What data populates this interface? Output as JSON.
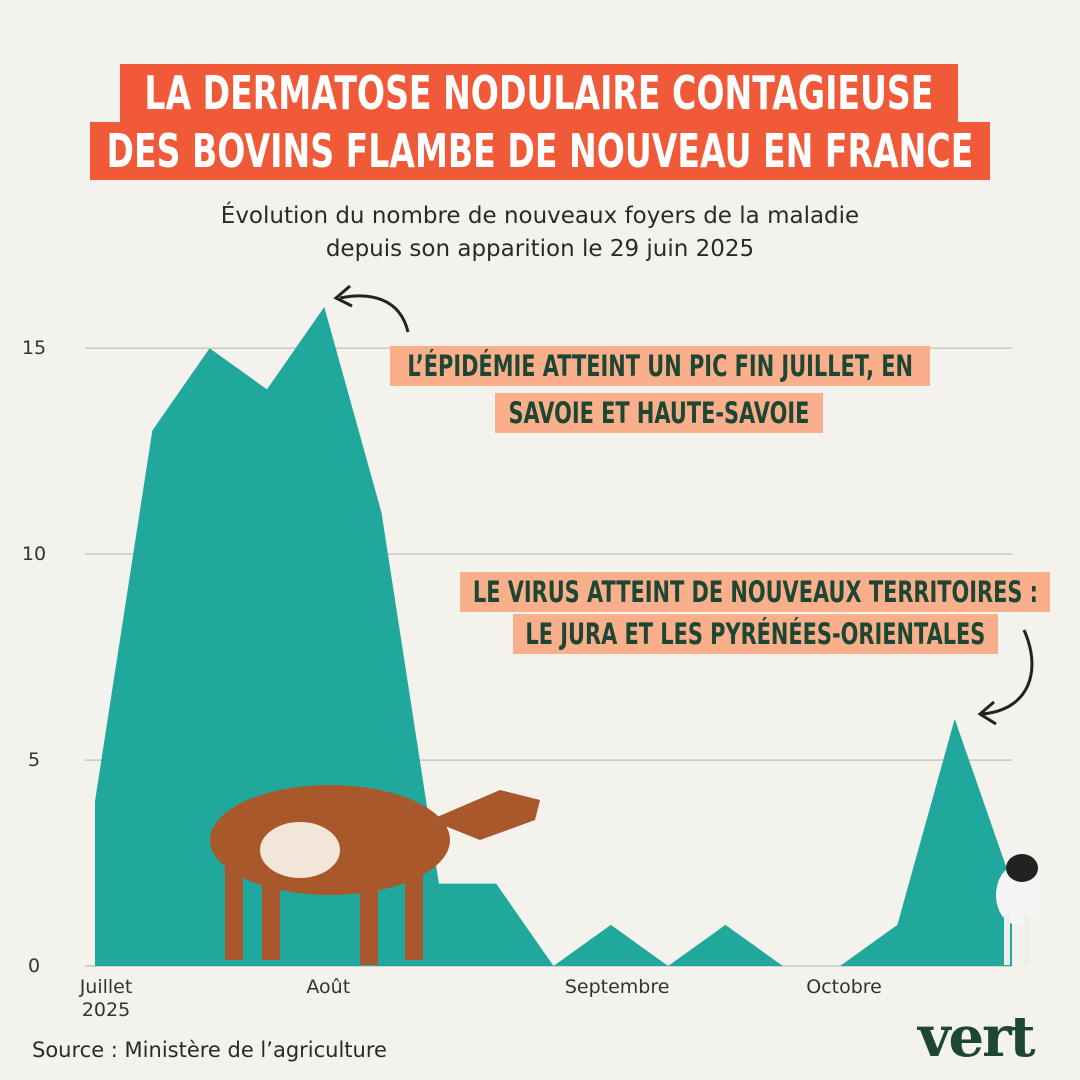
{
  "chart_data": {
    "type": "area",
    "title_lines": [
      "LA DERMATOSE NODULAIRE CONTAGIEUSE",
      "DES BOVINS FLAMBE DE NOUVEAU EN FRANCE"
    ],
    "subtitle_lines": [
      "Évolution du nombre de nouveaux foyers de la maladie",
      "depuis son apparition le 29 juin 2025"
    ],
    "categories": [
      "Juillet 2025",
      null,
      null,
      null,
      "Août",
      null,
      null,
      null,
      null,
      "Septembre",
      null,
      null,
      null,
      "Octobre",
      null,
      null,
      null
    ],
    "values": [
      4,
      13,
      15,
      14,
      16,
      11,
      2,
      2,
      0,
      1,
      0,
      1,
      0,
      0,
      1,
      6,
      2
    ],
    "color": "#20a89c",
    "ylim": [
      0,
      16
    ],
    "yticks": [
      0,
      5,
      10,
      15
    ],
    "grid": true,
    "annotations": [
      {
        "lines": [
          "L’ÉPIDÉMIE ATTEINT UN PIC FIN JUILLET, EN",
          "SAVOIE ET HAUTE-SAVOIE"
        ]
      },
      {
        "lines": [
          "LE VIRUS ATTEINT DE NOUVEAUX TERRITOIRES :",
          "LE JURA ET LES PYRÉNÉES-ORIENTALES"
        ]
      }
    ],
    "source": "Source : Ministère de l’agriculture",
    "logo": "vert"
  }
}
